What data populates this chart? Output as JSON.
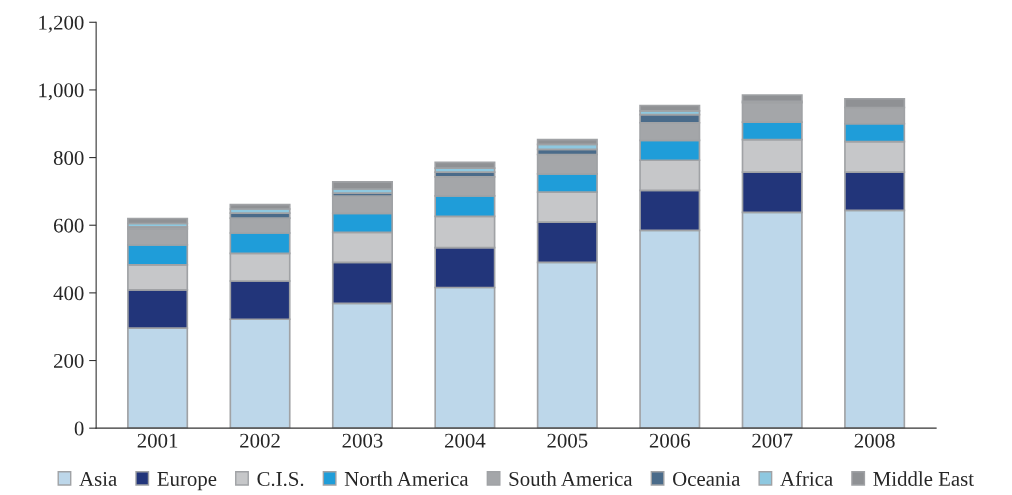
{
  "chart_data": {
    "type": "bar",
    "stacked": true,
    "categories": [
      "2001",
      "2002",
      "2003",
      "2004",
      "2005",
      "2006",
      "2007",
      "2008"
    ],
    "series": [
      {
        "name": "Asia",
        "color": "#bdd7ea",
        "values": [
          296,
          322,
          369,
          416,
          490,
          585,
          638,
          644
        ]
      },
      {
        "name": "Europe",
        "color": "#22357a",
        "values": [
          113,
          113,
          121,
          118,
          119,
          118,
          119,
          113
        ]
      },
      {
        "name": "C.I.S.",
        "color": "#c6c7c9",
        "values": [
          74,
          82,
          89,
          92,
          89,
          89,
          96,
          90
        ]
      },
      {
        "name": "North America",
        "color": "#1f9dd9",
        "values": [
          59,
          60,
          56,
          61,
          54,
          59,
          52,
          53
        ]
      },
      {
        "name": "South America",
        "color": "#a4a6a9",
        "values": [
          47,
          44,
          51,
          56,
          57,
          52,
          57,
          48
        ]
      },
      {
        "name": "Oceania",
        "color": "#4a6b8a",
        "values": [
          6,
          15,
          9,
          14,
          15,
          24,
          4,
          null
        ]
      },
      {
        "name": "Africa",
        "color": "#8ec8e0",
        "values": [
          10,
          12,
          12,
          12,
          15,
          11,
          null,
          null
        ]
      },
      {
        "name": "Middle East",
        "color": "#8f9194",
        "values": [
          15,
          13,
          21,
          17,
          14,
          16,
          19,
          26
        ]
      }
    ],
    "ylim": [
      0,
      1200
    ],
    "yticks": [
      0,
      {
        "value": 200,
        "label": "200"
      },
      {
        "value": 400,
        "label": "400"
      },
      {
        "value": 600,
        "label": "600"
      },
      {
        "value": 800,
        "label": "800"
      },
      {
        "value": 1000,
        "label": "1,000"
      },
      {
        "value": 1200,
        "label": "1,200"
      }
    ],
    "grid": false,
    "legend": "bottom"
  }
}
